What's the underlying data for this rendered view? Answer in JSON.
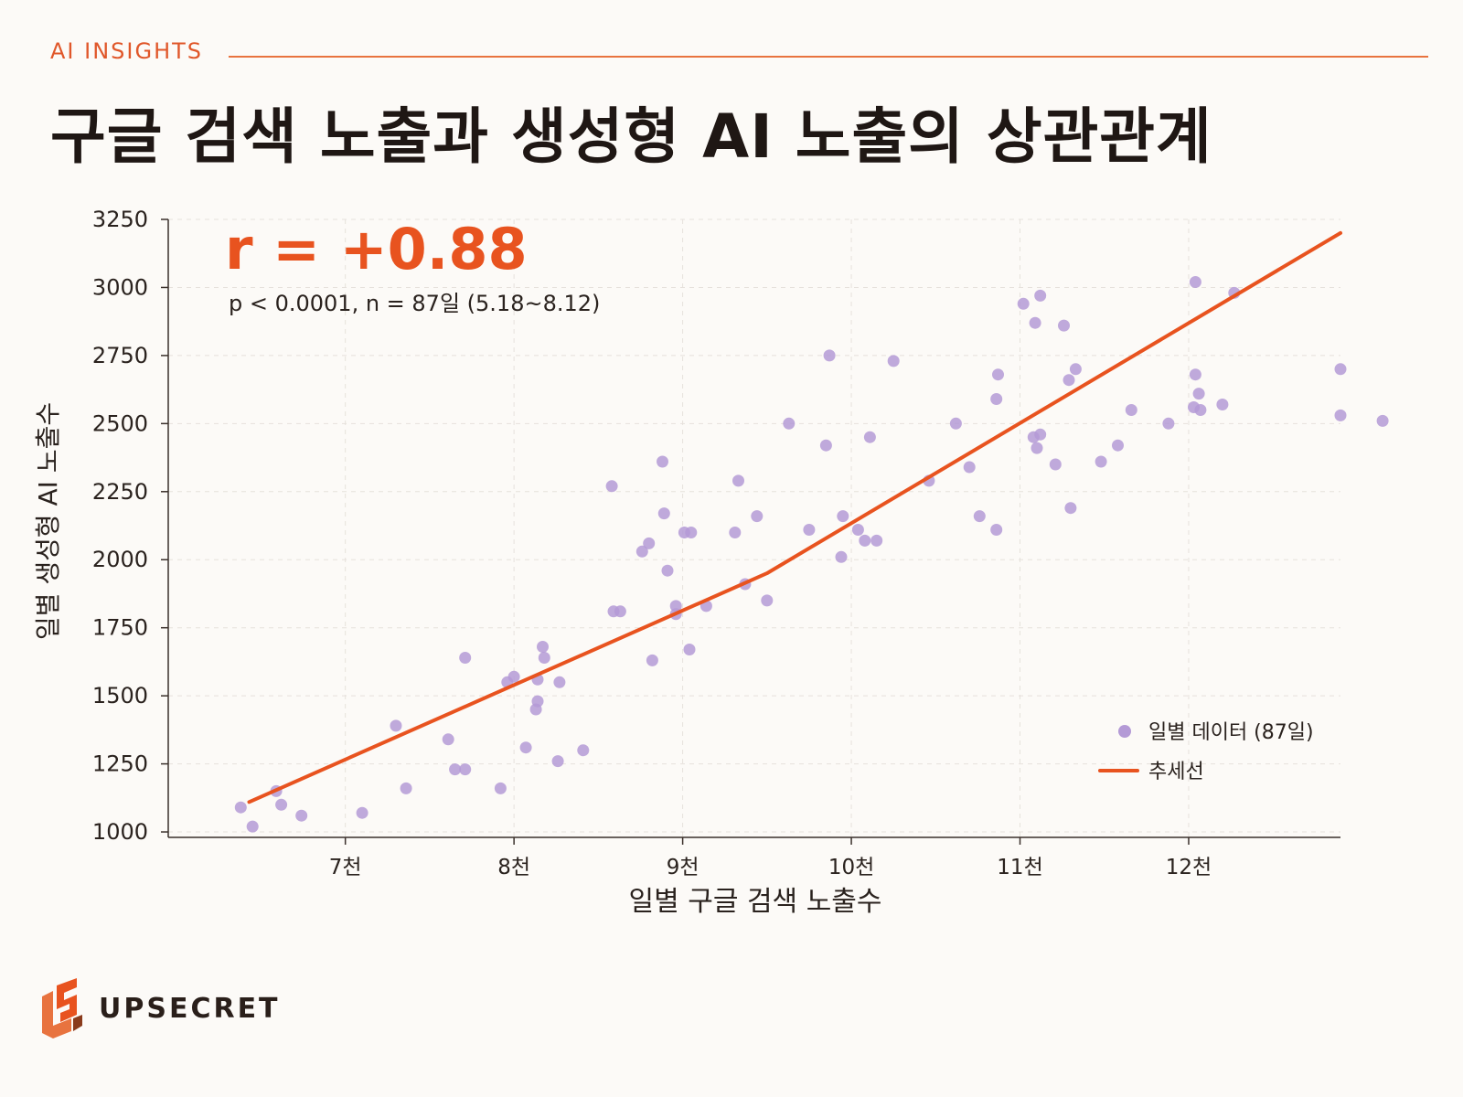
{
  "header": {
    "kicker": "AI INSIGHTS",
    "title": "구글 검색 노출과 생성형 AI 노출의 상관관계"
  },
  "brand": {
    "name": "UPSECRET"
  },
  "colors": {
    "accent": "#e8531f",
    "points": "#b49ad6",
    "text": "#1f1714",
    "grid": "#e6e1dc"
  },
  "chart_data": {
    "type": "scatter",
    "annotation": {
      "r": "r = +0.88",
      "stats": "p < 0.0001, n = 87일 (5.18~8.12)"
    },
    "xlabel": "일별 구글 검색 노출수",
    "ylabel": "일별 생성형 AI 노출수",
    "xlim": [
      5950,
      12900
    ],
    "ylim": [
      980,
      3250
    ],
    "xticks": [
      7000,
      8000,
      9000,
      10000,
      11000,
      12000
    ],
    "xtick_labels": [
      "7천",
      "8천",
      "9천",
      "10천",
      "11천",
      "12천"
    ],
    "yticks": [
      1000,
      1250,
      1500,
      1750,
      2000,
      2250,
      2500,
      2750,
      3000,
      3250
    ],
    "ytick_labels": [
      "1000",
      "1250",
      "1500",
      "1750",
      "2000",
      "2250",
      "2500",
      "2750",
      "3000",
      "3250"
    ],
    "legend": {
      "position": "bottom-right",
      "points_label": "일별 데이터 (87일)",
      "trend_label": "추세선"
    },
    "series": [
      {
        "name": "일별 데이터 (87일)",
        "kind": "points",
        "points": [
          [
            6380,
            1090
          ],
          [
            6450,
            1020
          ],
          [
            6590,
            1150
          ],
          [
            6620,
            1100
          ],
          [
            6740,
            1060
          ],
          [
            7100,
            1070
          ],
          [
            7300,
            1390
          ],
          [
            7360,
            1160
          ],
          [
            7610,
            1340
          ],
          [
            7650,
            1230
          ],
          [
            7710,
            1230
          ],
          [
            7710,
            1640
          ],
          [
            7920,
            1160
          ],
          [
            7960,
            1550
          ],
          [
            8000,
            1570
          ],
          [
            8070,
            1310
          ],
          [
            8130,
            1450
          ],
          [
            8140,
            1480
          ],
          [
            8170,
            1680
          ],
          [
            8180,
            1640
          ],
          [
            8260,
            1260
          ],
          [
            8270,
            1550
          ],
          [
            8410,
            1300
          ],
          [
            8580,
            2270
          ],
          [
            8590,
            1810
          ],
          [
            8630,
            1810
          ],
          [
            8760,
            2030
          ],
          [
            8800,
            2060
          ],
          [
            8820,
            1630
          ],
          [
            8880,
            2360
          ],
          [
            8890,
            2170
          ],
          [
            8910,
            1960
          ],
          [
            8960,
            1800
          ],
          [
            8960,
            1830
          ],
          [
            9010,
            2100
          ],
          [
            9040,
            1670
          ],
          [
            9050,
            2100
          ],
          [
            9140,
            1830
          ],
          [
            9310,
            2100
          ],
          [
            9330,
            2290
          ],
          [
            9370,
            1910
          ],
          [
            9440,
            2160
          ],
          [
            9500,
            1850
          ],
          [
            9630,
            2500
          ],
          [
            9750,
            2110
          ],
          [
            9850,
            2420
          ],
          [
            9870,
            2750
          ],
          [
            9940,
            2010
          ],
          [
            9950,
            2160
          ],
          [
            10040,
            2110
          ],
          [
            10080,
            2070
          ],
          [
            10110,
            2450
          ],
          [
            10150,
            2070
          ],
          [
            10250,
            2730
          ],
          [
            10460,
            2290
          ],
          [
            10620,
            2500
          ],
          [
            10700,
            2340
          ],
          [
            10760,
            2160
          ],
          [
            10860,
            2110
          ],
          [
            10860,
            2590
          ],
          [
            10870,
            2680
          ],
          [
            11020,
            2940
          ],
          [
            11080,
            2450
          ],
          [
            11090,
            2870
          ],
          [
            11100,
            2410
          ],
          [
            11120,
            2970
          ],
          [
            11120,
            2460
          ],
          [
            11210,
            2350
          ],
          [
            11260,
            2860
          ],
          [
            11290,
            2660
          ],
          [
            11300,
            2190
          ],
          [
            11330,
            2700
          ],
          [
            11480,
            2360
          ],
          [
            11580,
            2420
          ],
          [
            11660,
            2550
          ],
          [
            11880,
            2500
          ],
          [
            12030,
            2560
          ],
          [
            12040,
            2680
          ],
          [
            12040,
            3020
          ],
          [
            12060,
            2610
          ],
          [
            12070,
            2550
          ],
          [
            12200,
            2570
          ],
          [
            12270,
            2980
          ],
          [
            12900,
            2700
          ],
          [
            12900,
            2530
          ],
          [
            13150,
            2510
          ],
          [
            8140,
            1560
          ]
        ]
      },
      {
        "name": "추세선",
        "kind": "trend",
        "points": [
          [
            6430,
            1110
          ],
          [
            9500,
            1950
          ],
          [
            12900,
            3200
          ]
        ]
      }
    ]
  }
}
